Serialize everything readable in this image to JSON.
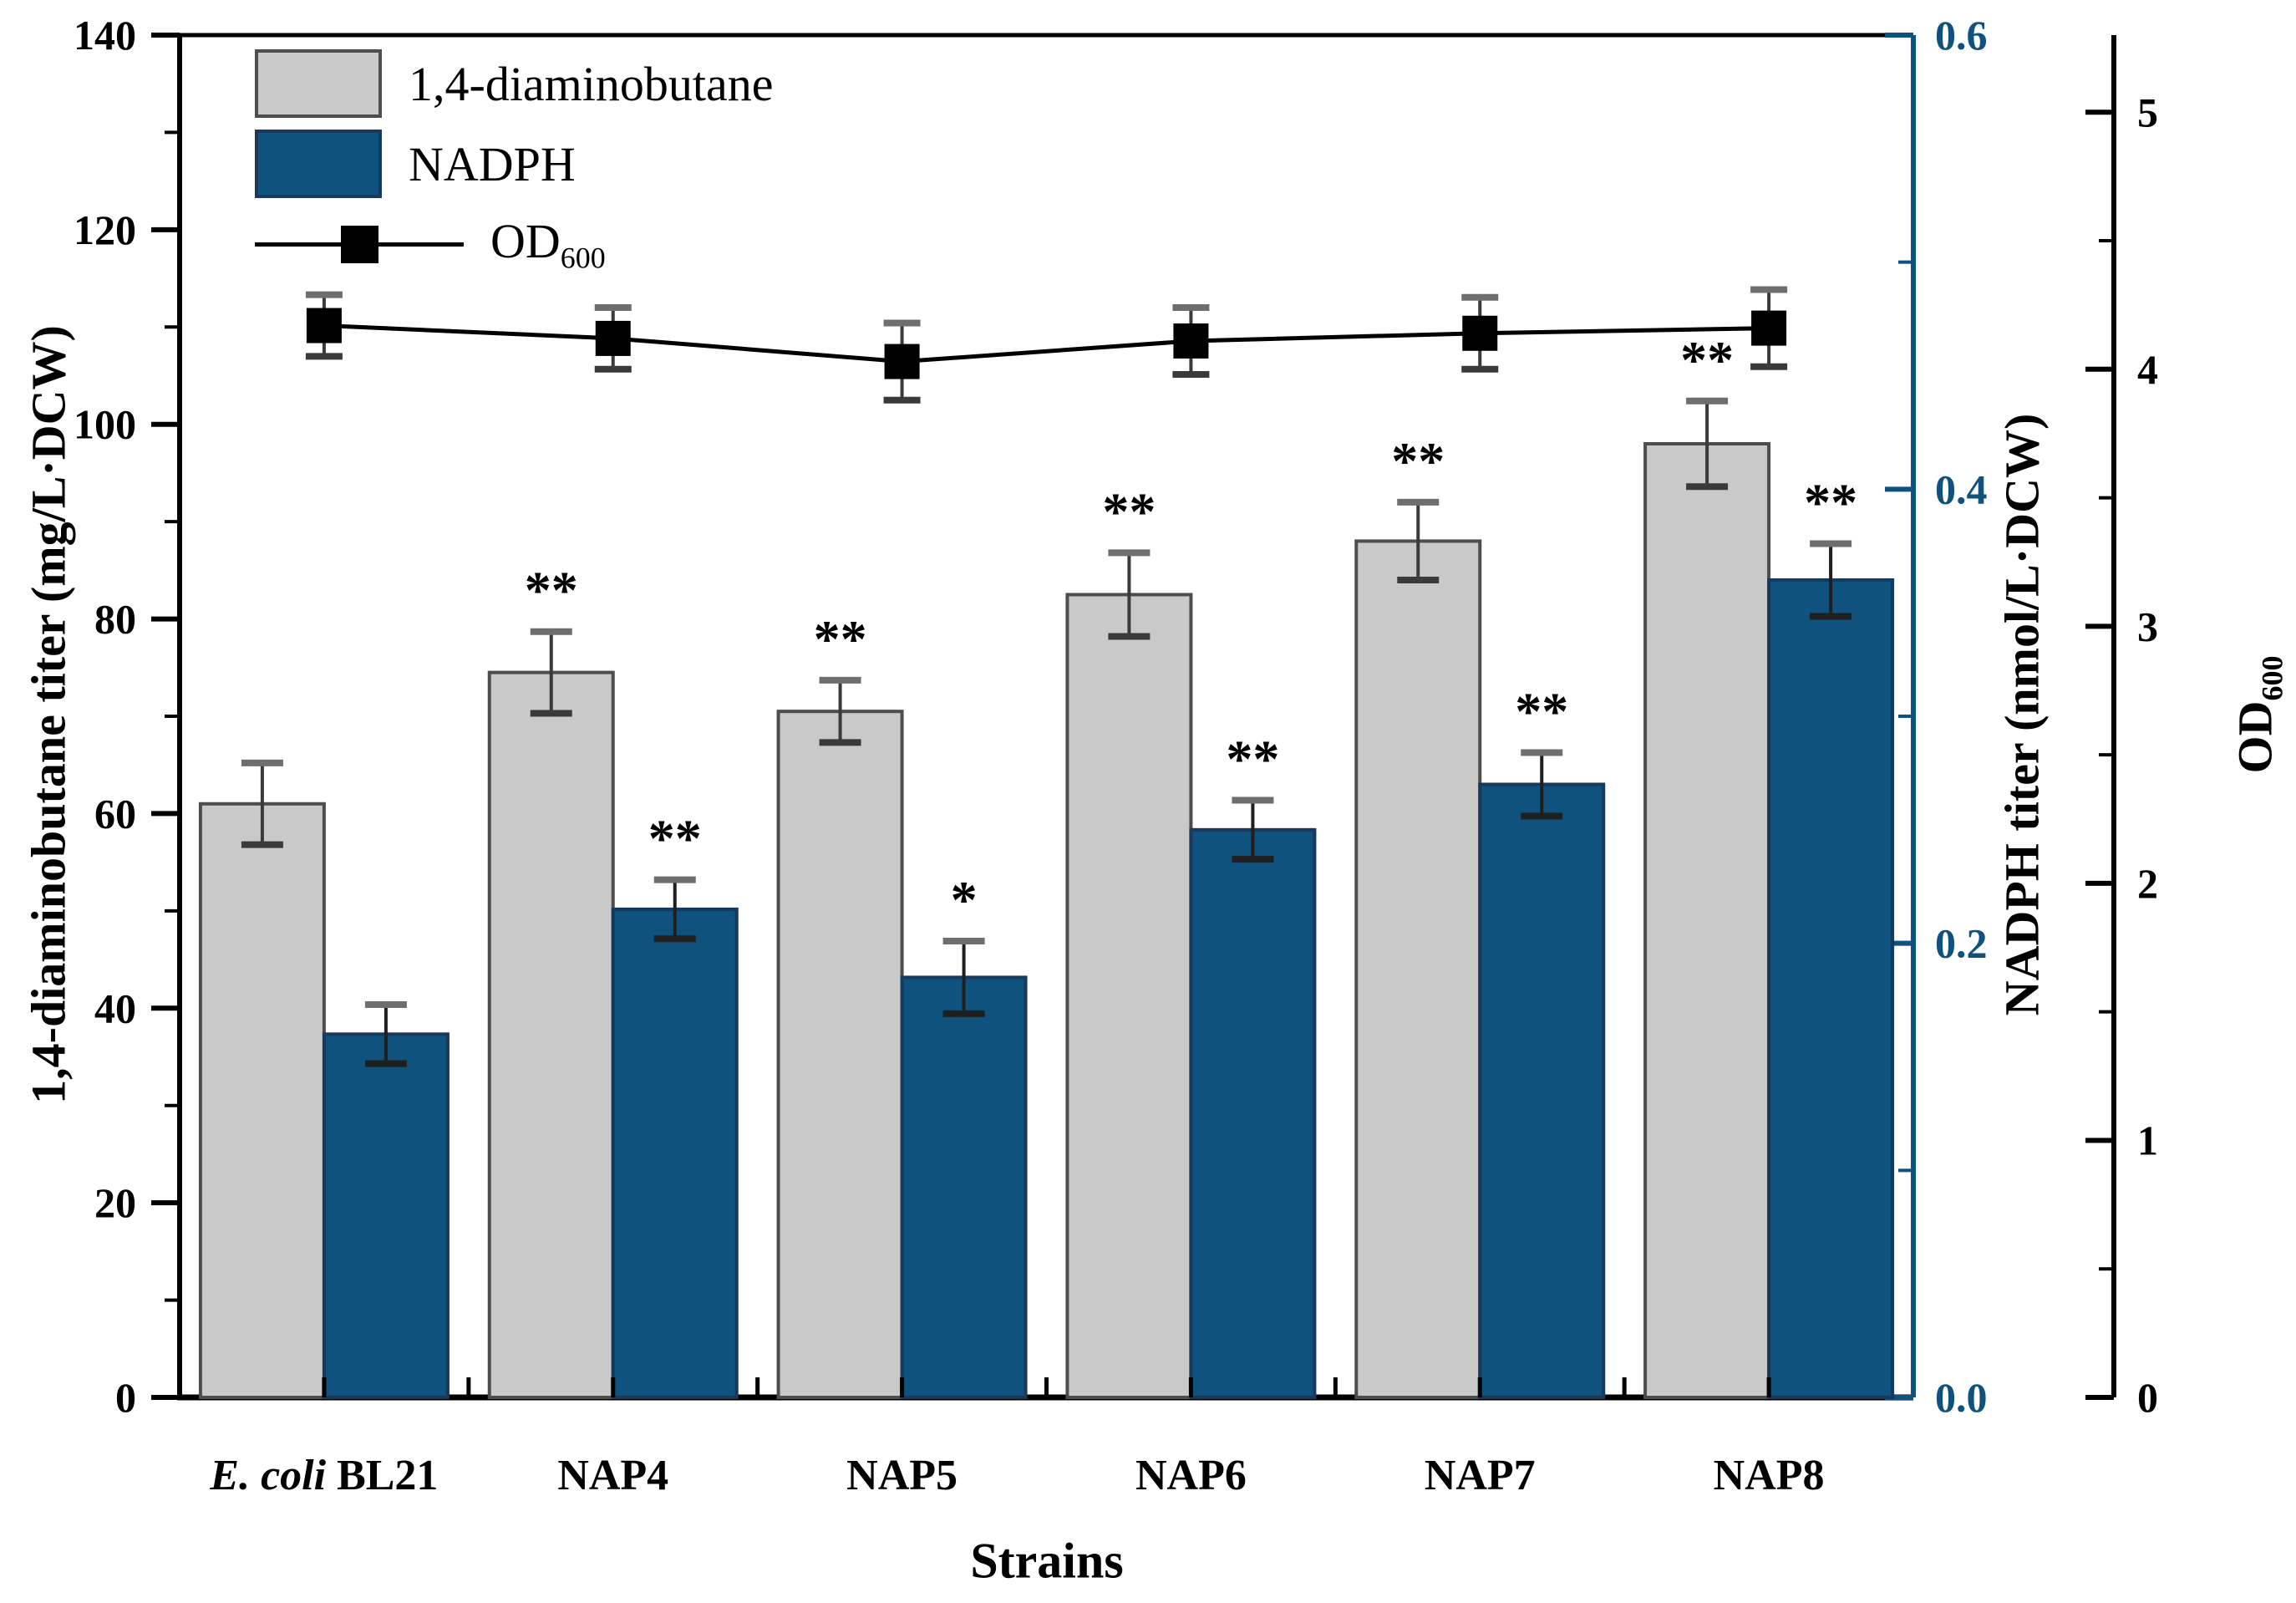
{
  "figure": {
    "legend": [
      {
        "type": "bar",
        "label": "1,4-diaminobutane",
        "color": "#c9c9c9",
        "border": "#4d4d4d"
      },
      {
        "type": "bar",
        "label": "NADPH",
        "color": "#0f527e",
        "border": "#16395c"
      },
      {
        "type": "line",
        "label": "OD",
        "label_sub": "600",
        "color": "#000000"
      }
    ]
  },
  "chart_data": {
    "type": "bar+line",
    "categories": [
      "E. coli BL21",
      "NAP4",
      "NAP5",
      "NAP6",
      "NAP7",
      "NAP8"
    ],
    "categories_rich": [
      {
        "italic": "E. coli",
        "text": " BL21"
      },
      {
        "text": "NAP4"
      },
      {
        "text": "NAP5"
      },
      {
        "text": "NAP6"
      },
      {
        "text": "NAP7"
      },
      {
        "text": "NAP8"
      }
    ],
    "xlabel": "Strains",
    "grid": false,
    "legend_position": "top-left-inside",
    "axes": {
      "left": {
        "label": "1,4-diaminobutane titer (mg/L·DCW)",
        "min": 0,
        "max": 140,
        "major_ticks": [
          0,
          20,
          40,
          60,
          80,
          100,
          120,
          140
        ],
        "minor_ticks": [
          10,
          30,
          50,
          70,
          90,
          110,
          130
        ],
        "color": "#000000"
      },
      "nadph": {
        "label": "NADPH titer (nmol/L·DCW)",
        "min": 0,
        "max": 0.6,
        "major_ticks": [
          {
            "v": 0.0,
            "label": "0.0"
          },
          {
            "v": 0.2,
            "label": "0.2"
          },
          {
            "v": 0.4,
            "label": "0.4"
          },
          {
            "v": 0.6,
            "label": "0.6"
          }
        ],
        "minor_ticks": [
          0.1,
          0.3,
          0.5
        ],
        "axis_color": "#0f527e",
        "label_color": "#000000"
      },
      "od": {
        "label": "OD",
        "label_sub": "600",
        "min": 0,
        "max": 5.3,
        "major_ticks": [
          0,
          1,
          2,
          3,
          4,
          5
        ],
        "minor_ticks": [
          0.5,
          1.5,
          2.5,
          3.5,
          4.5
        ],
        "color": "#000000"
      }
    },
    "series": [
      {
        "name": "1,4-diaminobutane",
        "type": "bar",
        "axis": "left",
        "color": "#c9c9c9",
        "border": "#4d4d4d",
        "values": [
          61,
          74.5,
          70.5,
          82.5,
          88,
          98
        ],
        "errors": [
          4.2,
          4.2,
          3.2,
          4.3,
          4.0,
          4.4
        ],
        "significance": [
          "",
          "**",
          "**",
          "**",
          "**",
          "**"
        ]
      },
      {
        "name": "NADPH",
        "type": "bar",
        "axis": "nadph",
        "color": "#0f527e",
        "border": "#16395c",
        "values": [
          0.16,
          0.215,
          0.185,
          0.25,
          0.27,
          0.36
        ],
        "errors": [
          0.013,
          0.013,
          0.016,
          0.013,
          0.014,
          0.016
        ],
        "significance": [
          "",
          "**",
          "*",
          "**",
          "**",
          "**"
        ]
      },
      {
        "name": "OD600",
        "type": "line",
        "axis": "od",
        "color": "#000000",
        "marker": "square",
        "values": [
          4.17,
          4.12,
          4.03,
          4.11,
          4.14,
          4.16
        ],
        "errors": [
          0.12,
          0.12,
          0.15,
          0.13,
          0.14,
          0.15
        ]
      }
    ]
  }
}
